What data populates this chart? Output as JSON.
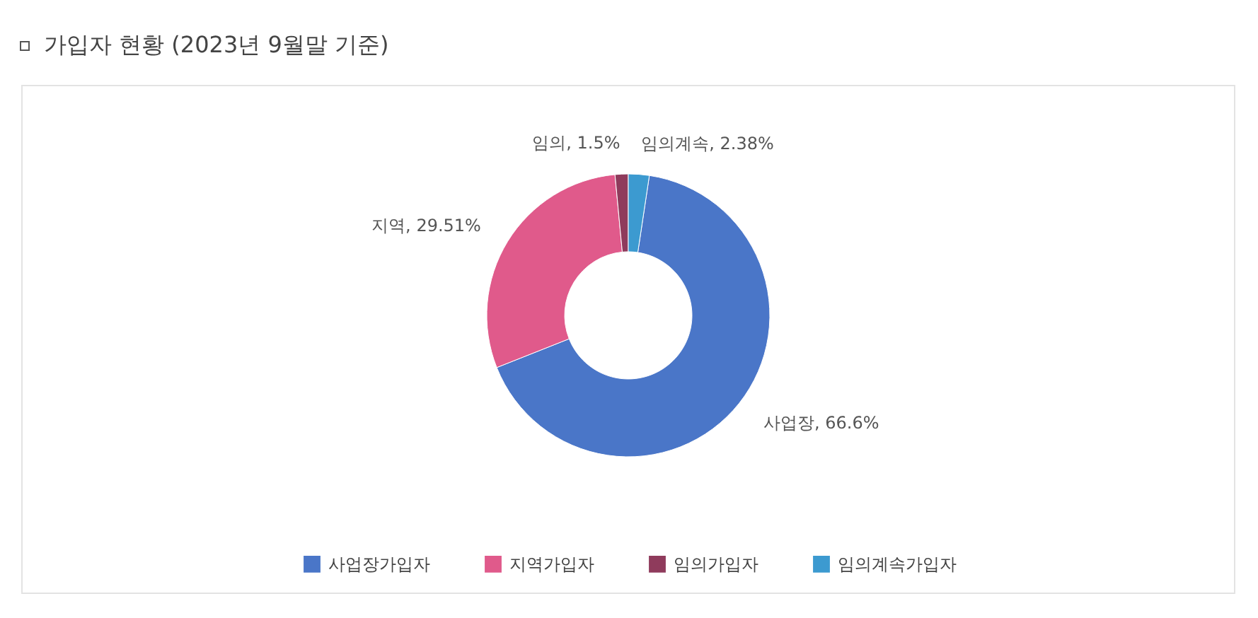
{
  "chart_data": {
    "type": "donut",
    "title": "가입자 현황 (2023년 9월말 기준)",
    "categories": [
      "사업장가입자",
      "지역가입자",
      "임의가입자",
      "임의계속가입자"
    ],
    "values": [
      66.6,
      29.51,
      1.5,
      2.38
    ],
    "colors": [
      "#4a76c8",
      "#e05a8b",
      "#8f3b5c",
      "#3c9ad0"
    ],
    "value_labels": [
      "사업장, 66.6%",
      "지역, 29.51%",
      "임의, 1.5%",
      "임의계속, 2.38%"
    ],
    "legend": "bottom"
  }
}
